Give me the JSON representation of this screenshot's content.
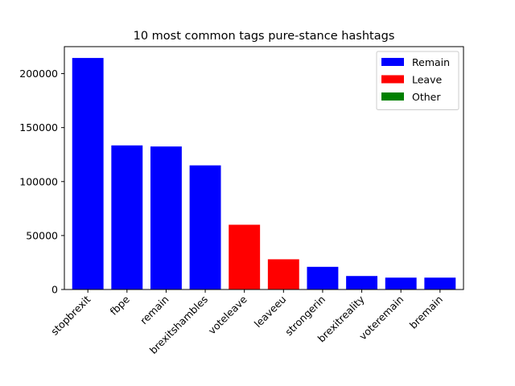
{
  "chart_data": {
    "type": "bar",
    "title": "10 most common tags pure-stance hashtags",
    "xlabel": "",
    "ylabel": "",
    "categories": [
      "stopbrexit",
      "fbpe",
      "remain",
      "brexitshambles",
      "voteleave",
      "leaveeu",
      "strongerin",
      "brexitreality",
      "voteremain",
      "bremain"
    ],
    "values": [
      214500,
      133500,
      132500,
      115000,
      60000,
      28000,
      21000,
      12500,
      11000,
      11000
    ],
    "stance": [
      "Remain",
      "Remain",
      "Remain",
      "Remain",
      "Leave",
      "Leave",
      "Remain",
      "Remain",
      "Remain",
      "Remain"
    ],
    "ylim": [
      0,
      225000
    ],
    "yticks": [
      0,
      50000,
      100000,
      150000,
      200000
    ],
    "ytick_labels": [
      "0",
      "50000",
      "100000",
      "150000",
      "200000"
    ],
    "grid": false,
    "legend": {
      "placement": "top-right",
      "entries": [
        {
          "label": "Remain",
          "color": "#0000ff"
        },
        {
          "label": "Leave",
          "color": "#ff0000"
        },
        {
          "label": "Other",
          "color": "#008000"
        }
      ]
    }
  }
}
